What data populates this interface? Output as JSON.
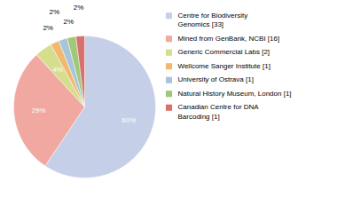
{
  "chart_data": {
    "type": "pie",
    "categories": [
      "Centre for Biodiversity\nGenomics [33]",
      "Mined from GenBank, NCBI [16]",
      "Generic Commercial Labs [2]",
      "Wellcome Sanger Institute [1]",
      "University of Ostrava [1]",
      "Natural History Museum, London [1]",
      "Canadian Centre for DNA\nBarcoding [1]"
    ],
    "values": [
      60,
      29,
      4,
      2,
      2,
      2,
      2
    ],
    "value_labels": [
      "60%",
      "29%",
      "4%",
      "2%",
      "2%",
      "2%",
      "2%"
    ],
    "colors": [
      "#c5cfe8",
      "#f0a8a0",
      "#d4de8c",
      "#f0b870",
      "#a8c4d8",
      "#a0c878",
      "#d87070"
    ],
    "data_labels": true,
    "legend": "right"
  }
}
